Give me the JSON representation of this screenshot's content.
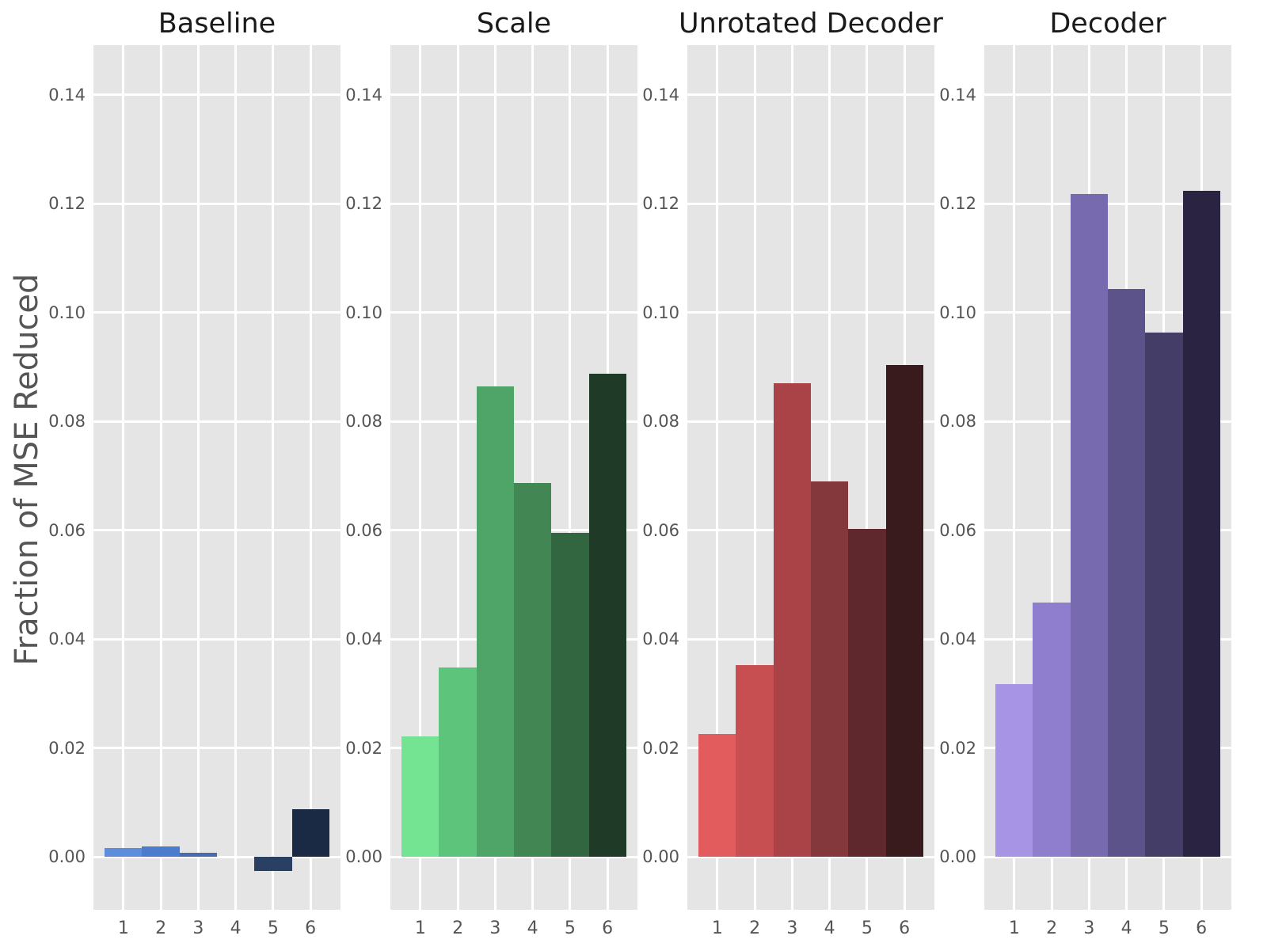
{
  "figure": {
    "ylabel": "Fraction of MSE Reduced",
    "y_tick_labels": [
      "0.00",
      "0.02",
      "0.04",
      "0.06",
      "0.08",
      "0.10",
      "0.12",
      "0.14"
    ],
    "x_tick_labels": [
      "1",
      "2",
      "3",
      "4",
      "5",
      "6"
    ],
    "background_color": "#ffffff",
    "axes_background_color": "#e5e5e5",
    "gridline_color": "#ffffff",
    "tick_label_color": "#555555",
    "title_color": "#1a1a1a"
  },
  "chart_data": [
    {
      "type": "bar",
      "title": "Baseline",
      "categories": [
        "1",
        "2",
        "3",
        "4",
        "5",
        "6"
      ],
      "values": [
        0.0017,
        0.0019,
        0.0008,
        0.0,
        -0.0026,
        0.0087
      ],
      "bar_colors": [
        "#5e8edb",
        "#4d7ccd",
        "#4a6caf",
        "#3a5689",
        "#2a4063",
        "#1b2a44"
      ],
      "xlabel": "",
      "ylabel": "Fraction of MSE Reduced",
      "ylim": [
        -0.0097,
        0.1491
      ],
      "grid": true,
      "legend": false
    },
    {
      "type": "bar",
      "title": "Scale",
      "categories": [
        "1",
        "2",
        "3",
        "4",
        "5",
        "6"
      ],
      "values": [
        0.0222,
        0.0348,
        0.0864,
        0.0687,
        0.0596,
        0.0888
      ],
      "bar_colors": [
        "#74e493",
        "#5cc57b",
        "#4fa567",
        "#428654",
        "#316640",
        "#1f3b28"
      ],
      "xlabel": "",
      "ylabel": "Fraction of MSE Reduced",
      "ylim": [
        -0.0097,
        0.1491
      ],
      "grid": true,
      "legend": false
    },
    {
      "type": "bar",
      "title": "Unrotated Decoder",
      "categories": [
        "1",
        "2",
        "3",
        "4",
        "5",
        "6"
      ],
      "values": [
        0.0226,
        0.0352,
        0.087,
        0.069,
        0.0602,
        0.0904
      ],
      "bar_colors": [
        "#e25c5e",
        "#c74f52",
        "#a94347",
        "#84383c",
        "#5e282c",
        "#391b1e"
      ],
      "xlabel": "",
      "ylabel": "Fraction of MSE Reduced",
      "ylim": [
        -0.0097,
        0.1491
      ],
      "grid": true,
      "legend": false
    },
    {
      "type": "bar",
      "title": "Decoder",
      "categories": [
        "1",
        "2",
        "3",
        "4",
        "5",
        "6"
      ],
      "values": [
        0.0318,
        0.0467,
        0.1218,
        0.1043,
        0.0964,
        0.1224
      ],
      "bar_colors": [
        "#a894e4",
        "#8f7ecd",
        "#776aae",
        "#5c538a",
        "#443d68",
        "#2a2442"
      ],
      "xlabel": "",
      "ylabel": "Fraction of MSE Reduced",
      "ylim": [
        -0.0097,
        0.1491
      ],
      "grid": true,
      "legend": false
    }
  ]
}
